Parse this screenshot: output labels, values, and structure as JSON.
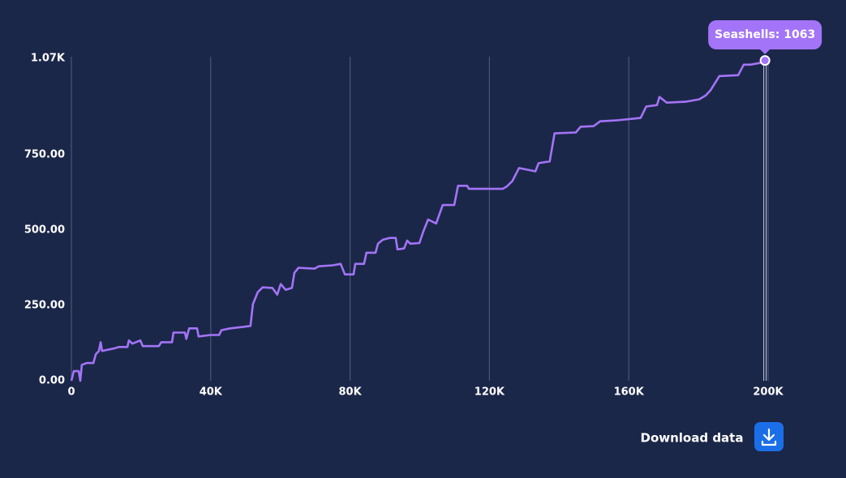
{
  "chart_data": {
    "type": "line",
    "tooltip": "Seashells: 1063",
    "button": "Download data",
    "color": "#a374f7",
    "grid": true,
    "xlim": [
      0,
      200000
    ],
    "ylim": [
      0,
      1070
    ],
    "xticks": [
      0,
      {
        "value": 40000,
        "label": "40K"
      },
      {
        "value": 80000,
        "label": "80K"
      },
      {
        "value": 120000,
        "label": "120K"
      },
      {
        "value": 160000,
        "label": "160K"
      },
      {
        "value": 200000,
        "label": "200K"
      }
    ],
    "yticks": [
      {
        "value": 0,
        "label": "0.00"
      },
      {
        "value": 250,
        "label": "250.00"
      },
      {
        "value": 500,
        "label": "500.00"
      },
      {
        "value": 750,
        "label": "750.00"
      },
      {
        "value": 1070,
        "label": "1.07K"
      }
    ],
    "x": [
      0,
      700,
      2100,
      2560,
      3000,
      4400,
      6300,
      7000,
      7900,
      8400,
      8800,
      12100,
      13700,
      16100,
      16500,
      17500,
      19800,
      20500,
      25100,
      25800,
      28900,
      29300,
      32600,
      33000,
      33800,
      36100,
      36500,
      40000,
      42400,
      43100,
      45600,
      49400,
      51400,
      52100,
      53500,
      54900,
      57700,
      59100,
      60100,
      61500,
      63300,
      64000,
      65200,
      69800,
      71000,
      75000,
      77300,
      78500,
      81000,
      81500,
      84000,
      84700,
      87300,
      88000,
      89400,
      91300,
      93100,
      93600,
      95500,
      96400,
      97300,
      99900,
      101000,
      102400,
      104700,
      106600,
      109900,
      111000,
      113600,
      114100,
      123800,
      125000,
      126600,
      128500,
      133200,
      134100,
      137300,
      138700,
      144800,
      146200,
      149900,
      151800,
      156400,
      163400,
      165000,
      168100,
      168800,
      170900,
      176200,
      180200,
      182100,
      183400,
      186000,
      191400,
      193000,
      194900,
      198800,
      199100
    ],
    "values": [
      0,
      32,
      32,
      0,
      53,
      59,
      59,
      88,
      99,
      128,
      99,
      107,
      112,
      112,
      134,
      123,
      134,
      115,
      115,
      128,
      128,
      160,
      160,
      139,
      174,
      174,
      147,
      152,
      152,
      168,
      174,
      179,
      182,
      254,
      294,
      310,
      308,
      286,
      321,
      302,
      308,
      358,
      375,
      372,
      380,
      383,
      388,
      353,
      353,
      388,
      388,
      425,
      425,
      455,
      468,
      474,
      474,
      436,
      439,
      465,
      455,
      457,
      495,
      535,
      522,
      583,
      583,
      647,
      647,
      637,
      637,
      645,
      663,
      706,
      695,
      722,
      728,
      821,
      824,
      843,
      845,
      861,
      864,
      872,
      910,
      915,
      942,
      923,
      926,
      934,
      947,
      963,
      1011,
      1014,
      1049,
      1049,
      1057,
      1063
    ]
  }
}
